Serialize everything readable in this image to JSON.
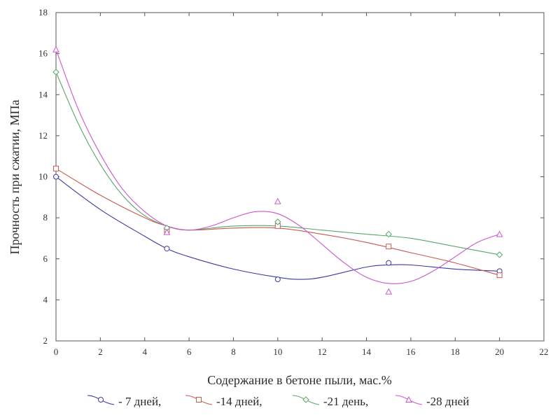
{
  "chart_data": {
    "type": "line",
    "title": "",
    "xlabel": "Содержание в бетоне пыли, мас.%",
    "ylabel": "Прочность при сжатии, МПа",
    "xlim": [
      0,
      22
    ],
    "ylim": [
      2,
      18
    ],
    "xticks": [
      0,
      2,
      4,
      6,
      8,
      10,
      12,
      14,
      16,
      18,
      20,
      22
    ],
    "yticks": [
      2,
      4,
      6,
      8,
      10,
      12,
      14,
      16,
      18
    ],
    "grid": false,
    "legend_position": "bottom",
    "series": [
      {
        "name": "- 7 дней,",
        "color": "#3a3aa6",
        "marker": "circle",
        "points": [
          [
            0,
            10.0
          ],
          [
            5,
            6.5
          ],
          [
            10,
            5.0
          ],
          [
            15,
            5.8
          ],
          [
            20,
            5.4
          ]
        ],
        "curve": [
          [
            0,
            10.0
          ],
          [
            2,
            8.4
          ],
          [
            4,
            7.1
          ],
          [
            5,
            6.5
          ],
          [
            6,
            6.1
          ],
          [
            8,
            5.5
          ],
          [
            10,
            5.1
          ],
          [
            11,
            5.0
          ],
          [
            12,
            5.1
          ],
          [
            14,
            5.6
          ],
          [
            15,
            5.7
          ],
          [
            16,
            5.7
          ],
          [
            18,
            5.5
          ],
          [
            20,
            5.4
          ]
        ]
      },
      {
        "name": "-14 дней,",
        "color": "#c85a50",
        "marker": "square",
        "points": [
          [
            0,
            10.4
          ],
          [
            5,
            7.4
          ],
          [
            10,
            7.6
          ],
          [
            15,
            6.6
          ],
          [
            20,
            5.2
          ]
        ],
        "curve": [
          [
            0,
            10.4
          ],
          [
            2,
            9.1
          ],
          [
            4,
            8.0
          ],
          [
            5,
            7.6
          ],
          [
            6,
            7.4
          ],
          [
            8,
            7.5
          ],
          [
            10,
            7.5
          ],
          [
            12,
            7.2
          ],
          [
            14,
            6.8
          ],
          [
            16,
            6.3
          ],
          [
            18,
            5.8
          ],
          [
            20,
            5.2
          ]
        ]
      },
      {
        "name": "-21 день,",
        "color": "#5aa66a",
        "marker": "diamond",
        "points": [
          [
            0,
            15.1
          ],
          [
            5,
            7.5
          ],
          [
            10,
            7.8
          ],
          [
            15,
            7.2
          ],
          [
            20,
            6.2
          ]
        ],
        "curve": [
          [
            0,
            15.1
          ],
          [
            1,
            12.6
          ],
          [
            2,
            10.6
          ],
          [
            3,
            9.1
          ],
          [
            4,
            8.1
          ],
          [
            5,
            7.6
          ],
          [
            6,
            7.4
          ],
          [
            8,
            7.6
          ],
          [
            10,
            7.6
          ],
          [
            12,
            7.4
          ],
          [
            14,
            7.2
          ],
          [
            16,
            7.0
          ],
          [
            18,
            6.6
          ],
          [
            20,
            6.2
          ]
        ]
      },
      {
        "name": "-28 дней",
        "color": "#cc55cc",
        "marker": "triangle",
        "points": [
          [
            0,
            16.2
          ],
          [
            5,
            7.3
          ],
          [
            10,
            8.8
          ],
          [
            15,
            4.4
          ],
          [
            20,
            7.2
          ]
        ],
        "curve": [
          [
            0,
            16.2
          ],
          [
            1,
            13.3
          ],
          [
            2,
            11.1
          ],
          [
            3,
            9.4
          ],
          [
            4,
            8.3
          ],
          [
            5,
            7.6
          ],
          [
            6,
            7.4
          ],
          [
            7,
            7.6
          ],
          [
            8,
            8.0
          ],
          [
            9,
            8.3
          ],
          [
            10,
            8.2
          ],
          [
            11,
            7.6
          ],
          [
            12,
            6.7
          ],
          [
            13,
            5.8
          ],
          [
            14,
            5.1
          ],
          [
            15,
            4.8
          ],
          [
            16,
            4.9
          ],
          [
            17,
            5.4
          ],
          [
            18,
            6.1
          ],
          [
            19,
            6.8
          ],
          [
            20,
            7.2
          ]
        ]
      }
    ]
  }
}
